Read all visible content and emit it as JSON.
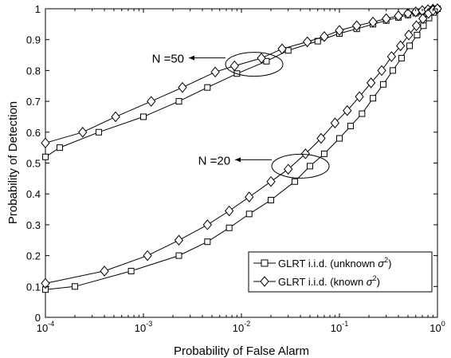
{
  "chart_data": {
    "type": "line",
    "xlabel": "Probability of False Alarm",
    "ylabel": "Probability of Detection",
    "xscale": "log",
    "xlim": [
      0.0001,
      1
    ],
    "ylim": [
      0,
      1
    ],
    "grid": false,
    "legend_position": "bottom-right",
    "x_ticks": [
      {
        "value": 0.0001,
        "base": "10",
        "exp": "-4"
      },
      {
        "value": 0.001,
        "base": "10",
        "exp": "-3"
      },
      {
        "value": 0.01,
        "base": "10",
        "exp": "-2"
      },
      {
        "value": 0.1,
        "base": "10",
        "exp": "-1"
      },
      {
        "value": 1,
        "base": "10",
        "exp": "0"
      }
    ],
    "y_ticks": [
      {
        "value": 0,
        "label": "0"
      },
      {
        "value": 0.1,
        "label": "0.1"
      },
      {
        "value": 0.2,
        "label": "0.2"
      },
      {
        "value": 0.3,
        "label": "0.3"
      },
      {
        "value": 0.4,
        "label": "0.4"
      },
      {
        "value": 0.5,
        "label": "0.5"
      },
      {
        "value": 0.6,
        "label": "0.6"
      },
      {
        "value": 0.7,
        "label": "0.7"
      },
      {
        "value": 0.8,
        "label": "0.8"
      },
      {
        "value": 0.9,
        "label": "0.9"
      },
      {
        "value": 1,
        "label": "1"
      }
    ],
    "legend": [
      {
        "text": "GLRT i.i.d. (unknown ",
        "sup_text": "2",
        "marker": "square"
      },
      {
        "text": "GLRT i.i.d. (known ",
        "sup_text": "2",
        "marker": "diamond"
      }
    ],
    "annotations": [
      {
        "text": "N =50",
        "target_x": 0.0135,
        "target_y": 0.82
      },
      {
        "text": "N =20",
        "target_x": 0.04,
        "target_y": 0.49
      }
    ],
    "series": [
      {
        "group": "N=50",
        "marker": "square",
        "x": [
          0.0001,
          0.00014,
          0.00035,
          0.001,
          0.0023,
          0.0045,
          0.009,
          0.018,
          0.03,
          0.06,
          0.1,
          0.15,
          0.22,
          0.3,
          0.4,
          0.5,
          0.6,
          0.7,
          0.8,
          0.9,
          1
        ],
        "y": [
          0.52,
          0.55,
          0.6,
          0.65,
          0.7,
          0.745,
          0.79,
          0.83,
          0.865,
          0.895,
          0.92,
          0.935,
          0.95,
          0.962,
          0.972,
          0.98,
          0.986,
          0.991,
          0.995,
          0.998,
          1.0
        ]
      },
      {
        "group": "N=50",
        "marker": "diamond",
        "x": [
          0.0001,
          0.00024,
          0.00052,
          0.0012,
          0.0025,
          0.0054,
          0.0085,
          0.016,
          0.026,
          0.047,
          0.07,
          0.1,
          0.15,
          0.22,
          0.3,
          0.4,
          0.5,
          0.6,
          0.7,
          0.8,
          0.9,
          1
        ],
        "y": [
          0.565,
          0.6,
          0.65,
          0.7,
          0.745,
          0.795,
          0.815,
          0.84,
          0.87,
          0.893,
          0.91,
          0.93,
          0.945,
          0.957,
          0.968,
          0.977,
          0.985,
          0.99,
          0.994,
          0.997,
          0.999,
          1.0
        ]
      },
      {
        "group": "N=20",
        "marker": "square",
        "x": [
          0.0001,
          0.0002,
          0.00075,
          0.0023,
          0.0045,
          0.0075,
          0.012,
          0.02,
          0.035,
          0.05,
          0.07,
          0.1,
          0.13,
          0.17,
          0.22,
          0.28,
          0.35,
          0.43,
          0.52,
          0.62,
          0.72,
          0.82,
          0.91,
          1
        ],
        "y": [
          0.09,
          0.1,
          0.15,
          0.2,
          0.245,
          0.29,
          0.335,
          0.38,
          0.44,
          0.49,
          0.53,
          0.58,
          0.62,
          0.66,
          0.71,
          0.755,
          0.8,
          0.84,
          0.88,
          0.915,
          0.945,
          0.97,
          0.988,
          1.0
        ]
      },
      {
        "group": "N=20",
        "marker": "diamond",
        "x": [
          0.0001,
          0.0004,
          0.0011,
          0.0023,
          0.0045,
          0.0075,
          0.012,
          0.02,
          0.03,
          0.045,
          0.065,
          0.09,
          0.12,
          0.16,
          0.21,
          0.27,
          0.34,
          0.42,
          0.51,
          0.61,
          0.71,
          0.81,
          0.9,
          1
        ],
        "y": [
          0.11,
          0.15,
          0.2,
          0.25,
          0.3,
          0.345,
          0.39,
          0.44,
          0.48,
          0.53,
          0.58,
          0.63,
          0.67,
          0.715,
          0.76,
          0.8,
          0.845,
          0.88,
          0.915,
          0.945,
          0.968,
          0.985,
          0.995,
          1.0
        ]
      }
    ]
  }
}
